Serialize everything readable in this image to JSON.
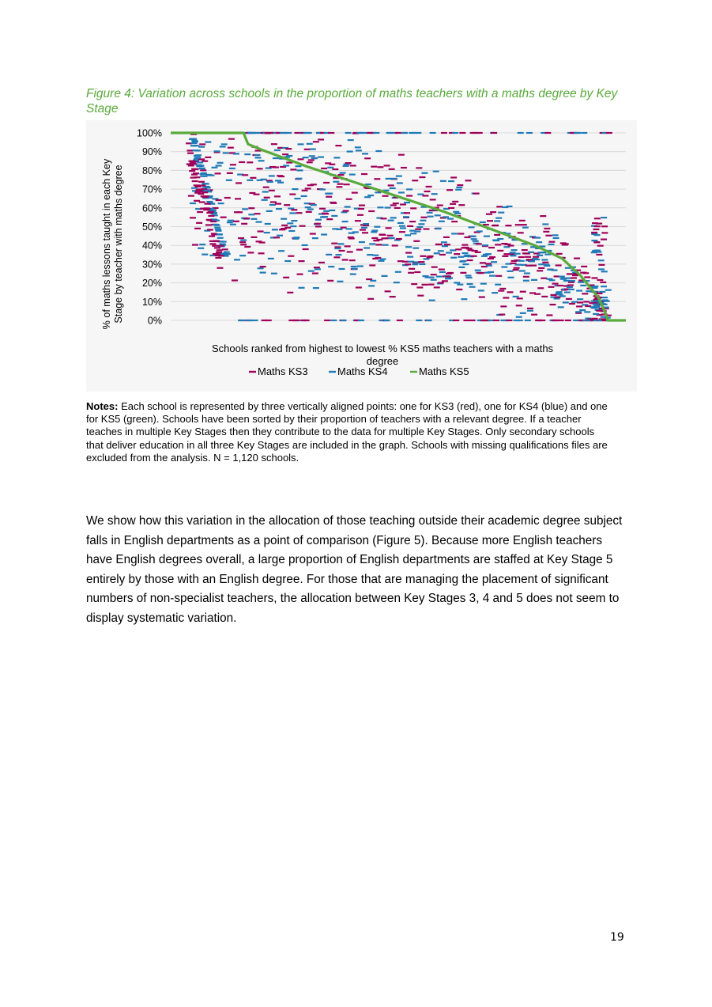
{
  "figure": {
    "title": "Figure 4: Variation across schools in the proportion of maths teachers with a maths degree by Key Stage"
  },
  "chart_data": {
    "type": "scatter",
    "title": "",
    "xlabel": "Schools ranked from highest to lowest % KS5 maths teachers with a maths degree",
    "ylabel": "% of maths lessons taught in each Key Stage by teacher with maths degree",
    "ylim": [
      0,
      100
    ],
    "y_ticks": [
      "0%",
      "10%",
      "20%",
      "30%",
      "40%",
      "50%",
      "60%",
      "70%",
      "80%",
      "90%",
      "100%"
    ],
    "n_schools": 1120,
    "grid": true,
    "legend_position": "bottom",
    "series": [
      {
        "name": "Maths KS3",
        "color": "#a0005a",
        "marker": "dash"
      },
      {
        "name": "Maths KS4",
        "color": "#1f7ab8",
        "marker": "dash"
      },
      {
        "name": "Maths KS5",
        "color": "#5aaa3c",
        "marker": "line"
      }
    ],
    "ks5_curve": {
      "x_rank_fraction": [
        0.0,
        0.16,
        0.17,
        0.2,
        0.3,
        0.4,
        0.5,
        0.6,
        0.7,
        0.8,
        0.86,
        0.9,
        0.94,
        0.955,
        0.96,
        1.0
      ],
      "y_percent": [
        100,
        100,
        94,
        91,
        82,
        74,
        66,
        58,
        49,
        40,
        33,
        24,
        12,
        4,
        0,
        0
      ]
    }
  },
  "notes": {
    "label": "Notes:",
    "text": " Each school is represented by three vertically aligned points: one for KS3 (red), one for KS4 (blue) and one for KS5 (green). Schools have been sorted by their proportion of teachers with a relevant degree. If a teacher teaches in multiple Key Stages then they contribute to the data for multiple Key Stages. Only secondary schools that deliver education in all three Key Stages are included in the graph. Schools with missing qualifications files are excluded from the analysis. N = 1,120 schools."
  },
  "body": {
    "paragraph": "We show how this variation in the allocation of those teaching outside their academic degree subject falls in English departments as a point of comparison (Figure 5). Because more English teachers have English degrees overall, a large proportion of English departments are staffed at Key Stage 5 entirely by those with an English degree. For those that are managing the placement of significant numbers of non-specialist teachers, the allocation between Key Stages 3, 4 and 5 does not seem to display systematic variation."
  },
  "page": {
    "number": "19"
  }
}
